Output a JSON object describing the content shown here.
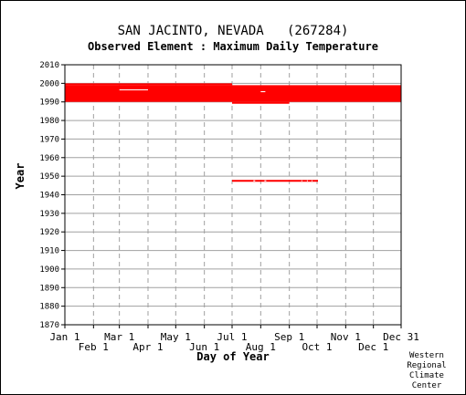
{
  "header": {
    "title": "SAN JACINTO, NEVADA   (267284)",
    "subtitle": "Observed Element : Maximum Daily Temperature"
  },
  "footer": {
    "credit": [
      "Western",
      "Regional",
      "Climate",
      "Center"
    ]
  },
  "chart_data": {
    "type": "heatmap",
    "xlabel": "Day of Year",
    "ylabel": "Year",
    "ylim": [
      1870,
      2010
    ],
    "xlim": [
      1,
      365
    ],
    "grid": true,
    "y_ticks": [
      2010,
      2000,
      1990,
      1980,
      1970,
      1960,
      1950,
      1940,
      1930,
      1920,
      1910,
      1900,
      1890,
      1880,
      1870
    ],
    "x_ticks_top_row": [
      {
        "label": "Jan 1",
        "day": 1
      },
      {
        "label": "Mar 1",
        "day": 60
      },
      {
        "label": "May 1",
        "day": 121
      },
      {
        "label": "Jul 1",
        "day": 182
      },
      {
        "label": "Sep 1",
        "day": 244
      },
      {
        "label": "Nov 1",
        "day": 305
      },
      {
        "label": "Dec 31",
        "day": 365
      }
    ],
    "x_ticks_bottom_row": [
      {
        "label": "Feb 1",
        "day": 32
      },
      {
        "label": "Apr 1",
        "day": 91
      },
      {
        "label": "Jun 1",
        "day": 152
      },
      {
        "label": "Aug 1",
        "day": 213
      },
      {
        "label": "Oct 1",
        "day": 274
      },
      {
        "label": "Dec 1",
        "day": 335
      }
    ],
    "color": "#ff0000",
    "observed_periods": [
      {
        "start_day": 1,
        "end_day": 365,
        "start_year": 1990,
        "end_year": 1999
      },
      {
        "start_day": 1,
        "end_day": 182,
        "start_year": 1999,
        "end_year": 2000
      },
      {
        "start_day": 182,
        "end_day": 244,
        "start_year": 1989,
        "end_year": 1990
      },
      {
        "start_day": 182,
        "end_day": 275,
        "start_year": 1947,
        "end_year": 1948
      }
    ],
    "missing_periods": [
      {
        "start_day": 60,
        "end_day": 91,
        "start_year": 1996,
        "end_year": 1997
      },
      {
        "start_day": 213,
        "end_day": 218,
        "start_year": 1995,
        "end_year": 1996
      },
      {
        "start_day": 205,
        "end_day": 207,
        "start_year": 1947,
        "end_year": 1948
      },
      {
        "start_day": 217,
        "end_day": 219,
        "start_year": 1947,
        "end_year": 1948
      },
      {
        "start_day": 257,
        "end_day": 258,
        "start_year": 1947,
        "end_year": 1948
      },
      {
        "start_day": 263,
        "end_day": 264,
        "start_year": 1947,
        "end_year": 1948
      },
      {
        "start_day": 268,
        "end_day": 269,
        "start_year": 1947,
        "end_year": 1948
      }
    ]
  }
}
